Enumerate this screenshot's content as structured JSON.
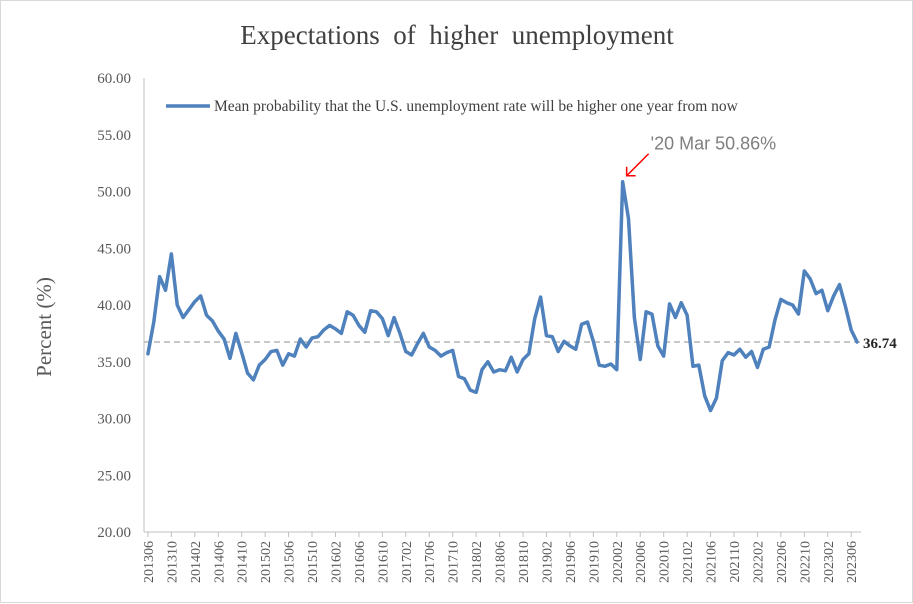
{
  "chart_data": {
    "type": "line",
    "title": "Expectations  of  higher  unemployment",
    "ylabel": "Percent (%)",
    "xlabel": "",
    "ylim": [
      20,
      60
    ],
    "y_ticks": [
      "20.00",
      "25.00",
      "30.00",
      "35.00",
      "40.00",
      "45.00",
      "50.00",
      "55.00",
      "60.00"
    ],
    "x_ticks": [
      "201306",
      "201310",
      "201402",
      "201406",
      "201410",
      "201502",
      "201506",
      "201510",
      "201602",
      "201606",
      "201610",
      "201702",
      "201706",
      "201710",
      "201802",
      "201806",
      "201810",
      "201902",
      "201906",
      "201910",
      "202002",
      "202006",
      "202010",
      "202102",
      "202106",
      "202110",
      "202202",
      "202206",
      "202210",
      "202302",
      "202306"
    ],
    "legend_position": "top",
    "grid": false,
    "series": [
      {
        "name": "Mean probability that the U.S. unemployment rate will be higher one year from now",
        "color": "#4f81bd",
        "start": "201306",
        "values": [
          35.7,
          38.5,
          42.5,
          41.3,
          44.5,
          40.0,
          38.9,
          39.6,
          40.3,
          40.8,
          39.1,
          38.6,
          37.7,
          37.0,
          35.3,
          37.5,
          35.8,
          34.0,
          33.4,
          34.7,
          35.2,
          35.9,
          36.0,
          34.7,
          35.7,
          35.5,
          37.0,
          36.3,
          37.1,
          37.2,
          37.8,
          38.2,
          37.9,
          37.5,
          39.4,
          39.1,
          38.2,
          37.6,
          39.5,
          39.4,
          38.8,
          37.3,
          38.9,
          37.5,
          35.9,
          35.6,
          36.6,
          37.5,
          36.3,
          36.0,
          35.5,
          35.8,
          36.0,
          33.7,
          33.5,
          32.5,
          32.3,
          34.3,
          35.0,
          34.1,
          34.3,
          34.2,
          35.4,
          34.1,
          35.2,
          35.7,
          38.8,
          40.7,
          37.3,
          37.2,
          35.9,
          36.8,
          36.4,
          36.1,
          38.3,
          38.5,
          36.8,
          34.7,
          34.6,
          34.8,
          34.3,
          50.86,
          47.6,
          38.9,
          35.2,
          39.4,
          39.2,
          36.4,
          35.5,
          40.1,
          38.9,
          40.2,
          39.1,
          34.6,
          34.7,
          32.0,
          30.7,
          31.8,
          35.1,
          35.8,
          35.6,
          36.1,
          35.4,
          35.9,
          34.5,
          36.1,
          36.3,
          38.7,
          40.5,
          40.2,
          40.0,
          39.2,
          43.0,
          42.3,
          41.0,
          41.3,
          39.5,
          40.8,
          41.8,
          39.9,
          37.8,
          36.74
        ]
      }
    ],
    "reference_line": {
      "value": 36.74,
      "label": "36.74",
      "style": "dashed",
      "color": "#a6a6a6"
    },
    "annotations": [
      {
        "text": "'20 Mar 50.86%",
        "target_period": "202003",
        "target_value": 50.86,
        "arrow_color": "#ff0000",
        "text_color": "#7f7f7f"
      }
    ]
  }
}
